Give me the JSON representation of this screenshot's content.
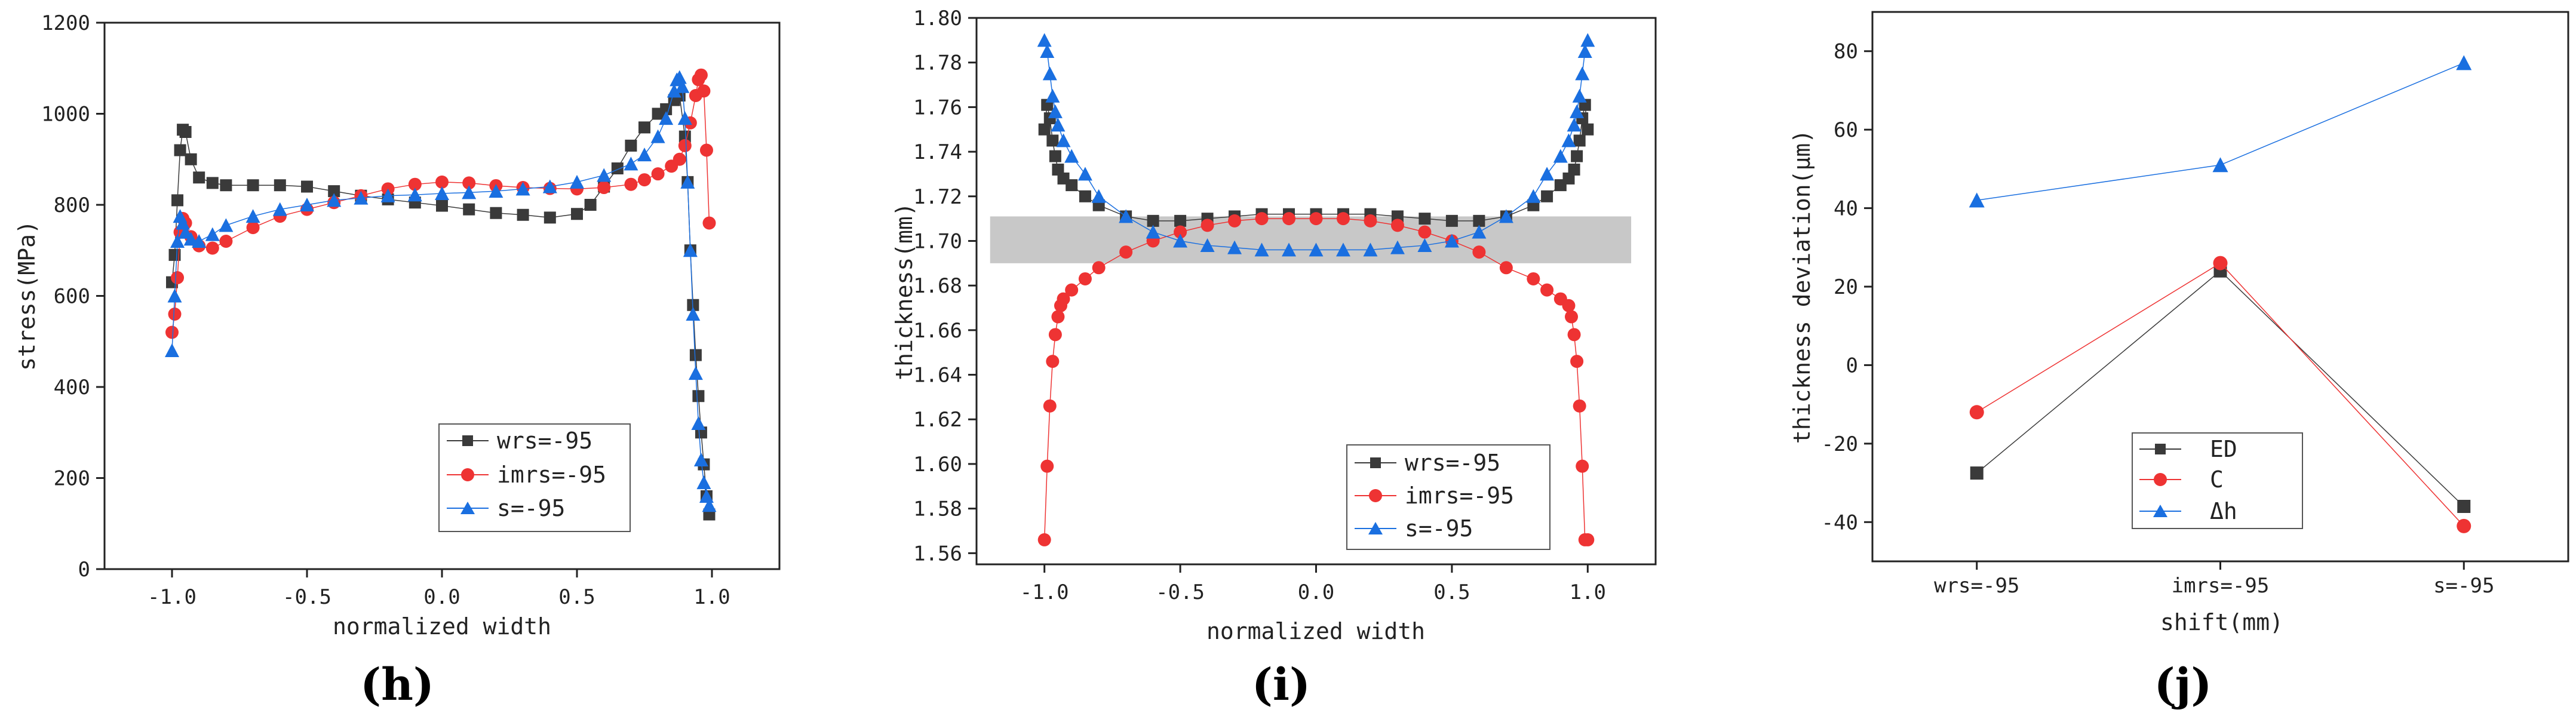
{
  "colors": {
    "black_series": "#3a3a3a",
    "red_series": "#ee3333",
    "blue_series": "#1a6fe0",
    "band": "#c8c8c8"
  },
  "chart_data": [
    {
      "type": "scatter",
      "panel_label": "(h)",
      "xlabel": "normalized width",
      "ylabel": "stress(MPa)",
      "xlim": [
        -1.25,
        1.25
      ],
      "ylim": [
        0,
        1200
      ],
      "xticks": [
        -1.0,
        -0.5,
        0.0,
        0.5,
        1.0
      ],
      "xtick_labels": [
        "-1.0",
        "-0.5",
        "0.0",
        "0.5",
        "1.0"
      ],
      "yticks": [
        0,
        200,
        400,
        600,
        800,
        1000,
        1200
      ],
      "ytick_labels": [
        "0",
        "200",
        "400",
        "600",
        "800",
        "1000",
        "1200"
      ],
      "legend_position": "lower-right",
      "series": [
        {
          "name": "wrs=-95",
          "marker": "square",
          "color": "#3a3a3a",
          "x": [
            -1.0,
            -0.99,
            -0.98,
            -0.97,
            -0.96,
            -0.95,
            -0.93,
            -0.9,
            -0.85,
            -0.8,
            -0.7,
            -0.6,
            -0.5,
            -0.4,
            -0.3,
            -0.2,
            -0.1,
            0.0,
            0.1,
            0.2,
            0.3,
            0.4,
            0.5,
            0.55,
            0.6,
            0.65,
            0.7,
            0.75,
            0.8,
            0.83,
            0.86,
            0.88,
            0.9,
            0.91,
            0.92,
            0.93,
            0.94,
            0.95,
            0.96,
            0.97,
            0.98,
            0.99
          ],
          "y": [
            630,
            690,
            810,
            920,
            965,
            960,
            900,
            860,
            848,
            843,
            843,
            843,
            840,
            830,
            820,
            812,
            805,
            798,
            790,
            782,
            778,
            772,
            780,
            800,
            840,
            880,
            930,
            970,
            1000,
            1010,
            1030,
            1040,
            950,
            850,
            700,
            580,
            470,
            380,
            300,
            230,
            160,
            120
          ]
        },
        {
          "name": "imrs=-95",
          "marker": "circle",
          "color": "#ee3333",
          "x": [
            -1.0,
            -0.99,
            -0.98,
            -0.97,
            -0.96,
            -0.95,
            -0.93,
            -0.9,
            -0.85,
            -0.8,
            -0.7,
            -0.6,
            -0.5,
            -0.4,
            -0.3,
            -0.2,
            -0.1,
            0.0,
            0.1,
            0.2,
            0.3,
            0.4,
            0.5,
            0.6,
            0.7,
            0.75,
            0.8,
            0.85,
            0.88,
            0.9,
            0.92,
            0.94,
            0.95,
            0.96,
            0.97,
            0.98,
            0.99
          ],
          "y": [
            520,
            560,
            640,
            740,
            770,
            760,
            730,
            710,
            705,
            720,
            750,
            775,
            790,
            805,
            820,
            835,
            845,
            850,
            848,
            842,
            838,
            836,
            835,
            838,
            845,
            855,
            868,
            885,
            900,
            930,
            980,
            1040,
            1075,
            1085,
            1050,
            920,
            760
          ]
        },
        {
          "name": "s=-95",
          "marker": "triangle",
          "color": "#1a6fe0",
          "x": [
            -1.0,
            -0.99,
            -0.98,
            -0.97,
            -0.96,
            -0.95,
            -0.93,
            -0.9,
            -0.85,
            -0.8,
            -0.7,
            -0.6,
            -0.5,
            -0.4,
            -0.3,
            -0.2,
            -0.1,
            0.0,
            0.1,
            0.2,
            0.3,
            0.4,
            0.5,
            0.6,
            0.7,
            0.75,
            0.8,
            0.83,
            0.86,
            0.87,
            0.88,
            0.89,
            0.9,
            0.91,
            0.92,
            0.93,
            0.94,
            0.95,
            0.96,
            0.97,
            0.98,
            0.99
          ],
          "y": [
            480,
            600,
            720,
            775,
            760,
            740,
            725,
            720,
            735,
            755,
            775,
            790,
            800,
            810,
            815,
            820,
            822,
            825,
            827,
            830,
            835,
            840,
            850,
            865,
            890,
            910,
            950,
            990,
            1050,
            1075,
            1080,
            1060,
            990,
            850,
            700,
            560,
            430,
            320,
            240,
            190,
            160,
            140
          ]
        }
      ]
    },
    {
      "type": "scatter",
      "panel_label": "(i)",
      "xlabel": "normalized width",
      "ylabel": "thickness(mm)",
      "xlim": [
        -1.25,
        1.25
      ],
      "ylim": [
        1.555,
        1.8
      ],
      "xticks": [
        -1.0,
        -0.5,
        0.0,
        0.5,
        1.0
      ],
      "xtick_labels": [
        "-1.0",
        "-0.5",
        "0.0",
        "0.5",
        "1.0"
      ],
      "yticks": [
        1.56,
        1.58,
        1.6,
        1.62,
        1.64,
        1.66,
        1.68,
        1.7,
        1.72,
        1.74,
        1.76,
        1.78,
        1.8
      ],
      "ytick_labels": [
        "1.56",
        "1.58",
        "1.60",
        "1.62",
        "1.64",
        "1.66",
        "1.68",
        "1.70",
        "1.72",
        "1.74",
        "1.76",
        "1.78",
        "1.80"
      ],
      "tolerance_band": {
        "x_range": [
          -1.2,
          1.16
        ],
        "y_range": [
          1.69,
          1.711
        ]
      },
      "legend_position": "lower-right",
      "series": [
        {
          "name": "wrs=-95",
          "marker": "square",
          "color": "#3a3a3a",
          "x": [
            -1.0,
            -0.99,
            -0.98,
            -0.97,
            -0.96,
            -0.95,
            -0.93,
            -0.9,
            -0.85,
            -0.8,
            -0.7,
            -0.6,
            -0.5,
            -0.4,
            -0.3,
            -0.2,
            -0.1,
            0.0,
            0.1,
            0.2,
            0.3,
            0.4,
            0.5,
            0.6,
            0.7,
            0.8,
            0.85,
            0.9,
            0.93,
            0.95,
            0.96,
            0.97,
            0.98,
            0.99,
            1.0
          ],
          "y": [
            1.75,
            1.761,
            1.755,
            1.745,
            1.738,
            1.732,
            1.728,
            1.725,
            1.72,
            1.716,
            1.711,
            1.709,
            1.709,
            1.71,
            1.711,
            1.712,
            1.712,
            1.712,
            1.712,
            1.712,
            1.711,
            1.71,
            1.709,
            1.709,
            1.711,
            1.716,
            1.72,
            1.725,
            1.728,
            1.732,
            1.738,
            1.745,
            1.755,
            1.761,
            1.75
          ]
        },
        {
          "name": "imrs=-95",
          "marker": "circle",
          "color": "#ee3333",
          "x": [
            -1.0,
            -0.99,
            -0.98,
            -0.97,
            -0.96,
            -0.95,
            -0.94,
            -0.93,
            -0.9,
            -0.85,
            -0.8,
            -0.7,
            -0.6,
            -0.5,
            -0.4,
            -0.3,
            -0.2,
            -0.1,
            0.0,
            0.1,
            0.2,
            0.3,
            0.4,
            0.5,
            0.6,
            0.7,
            0.8,
            0.85,
            0.9,
            0.93,
            0.94,
            0.95,
            0.96,
            0.97,
            0.98,
            0.99,
            1.0
          ],
          "y": [
            1.566,
            1.599,
            1.626,
            1.646,
            1.658,
            1.666,
            1.671,
            1.674,
            1.678,
            1.683,
            1.688,
            1.695,
            1.7,
            1.704,
            1.707,
            1.709,
            1.71,
            1.71,
            1.71,
            1.71,
            1.709,
            1.707,
            1.704,
            1.7,
            1.695,
            1.688,
            1.683,
            1.678,
            1.674,
            1.671,
            1.666,
            1.658,
            1.646,
            1.626,
            1.599,
            1.566,
            1.566
          ]
        },
        {
          "name": "s=-95",
          "marker": "triangle",
          "color": "#1a6fe0",
          "x": [
            -1.0,
            -0.99,
            -0.98,
            -0.97,
            -0.96,
            -0.95,
            -0.93,
            -0.9,
            -0.85,
            -0.8,
            -0.7,
            -0.6,
            -0.5,
            -0.4,
            -0.3,
            -0.2,
            -0.1,
            0.0,
            0.1,
            0.2,
            0.3,
            0.4,
            0.5,
            0.6,
            0.7,
            0.8,
            0.85,
            0.9,
            0.93,
            0.95,
            0.96,
            0.97,
            0.98,
            0.99,
            1.0
          ],
          "y": [
            1.79,
            1.785,
            1.775,
            1.765,
            1.758,
            1.752,
            1.745,
            1.738,
            1.73,
            1.72,
            1.711,
            1.704,
            1.7,
            1.698,
            1.697,
            1.696,
            1.696,
            1.696,
            1.696,
            1.696,
            1.697,
            1.698,
            1.7,
            1.704,
            1.711,
            1.72,
            1.73,
            1.738,
            1.745,
            1.752,
            1.758,
            1.765,
            1.775,
            1.785,
            1.79
          ]
        }
      ]
    },
    {
      "type": "line",
      "panel_label": "(j)",
      "xlabel": "shift(mm)",
      "ylabel": "thickness deviation(μm)",
      "categories": [
        "wrs=-95",
        "imrs=-95",
        "s=-95"
      ],
      "ylim": [
        -50,
        90
      ],
      "yticks": [
        -40,
        -20,
        0,
        20,
        40,
        60,
        80
      ],
      "ytick_labels": [
        "-40",
        "-20",
        "0",
        "20",
        "40",
        "60",
        "80"
      ],
      "legend_position": "bottom-left",
      "series": [
        {
          "name": "ED",
          "marker": "square",
          "color": "#3a3a3a",
          "values": [
            -27.5,
            24,
            -36
          ]
        },
        {
          "name": "C",
          "marker": "circle",
          "color": "#ee3333",
          "values": [
            -12,
            26,
            -41
          ]
        },
        {
          "name": "Δh",
          "marker": "triangle",
          "color": "#1a6fe0",
          "values": [
            42,
            51,
            77
          ]
        }
      ]
    }
  ]
}
